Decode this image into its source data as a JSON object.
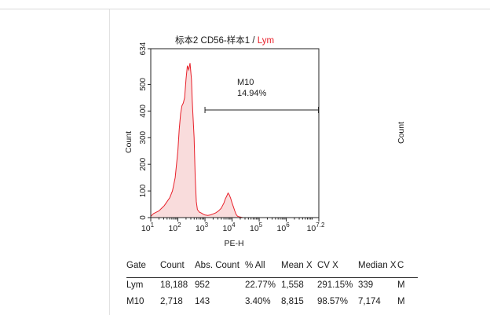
{
  "plot": {
    "title_main": "标本2 CD56-样本1 / ",
    "title_gate": "Lym",
    "ylabel": "Count",
    "xlabel": "PE-H",
    "ymax_label": "634",
    "right_panel_ylabel": "Count",
    "marker": {
      "name": "M10",
      "percent": "14.94%"
    }
  },
  "chart_data": {
    "type": "area",
    "title": "标本2 CD56-样本1 / Lym",
    "xlabel": "PE-H",
    "ylabel": "Count",
    "x_scale": "log",
    "xlim": [
      10,
      15848932
    ],
    "ylim": [
      0,
      634
    ],
    "x_ticks": [
      {
        "base": "10",
        "exp": "1"
      },
      {
        "base": "10",
        "exp": "2"
      },
      {
        "base": "10",
        "exp": "3"
      },
      {
        "base": "10",
        "exp": "4"
      },
      {
        "base": "10",
        "exp": "5"
      },
      {
        "base": "10",
        "exp": "6"
      },
      {
        "base": "10",
        "exp": "7.2"
      }
    ],
    "y_ticks": [
      "0",
      "100",
      "200",
      "300",
      "400",
      "500",
      "634"
    ],
    "series_color": "#e8202a",
    "fill_color": "#f9dcdc",
    "histogram": {
      "log10_x": [
        1.0,
        1.1,
        1.2,
        1.3,
        1.4,
        1.5,
        1.6,
        1.7,
        1.8,
        1.9,
        2.0,
        2.05,
        2.1,
        2.15,
        2.2,
        2.25,
        2.3,
        2.35,
        2.4,
        2.45,
        2.5,
        2.53,
        2.56,
        2.6,
        2.64,
        2.68,
        2.72,
        2.76,
        2.8,
        2.85,
        2.9,
        2.95,
        3.0,
        3.1,
        3.2,
        3.3,
        3.4,
        3.5,
        3.6,
        3.7,
        3.75,
        3.8,
        3.85,
        3.9,
        3.95,
        4.0,
        4.05,
        4.1,
        4.15,
        4.2,
        4.3,
        4.4,
        4.5,
        4.6,
        4.8,
        5.0,
        5.5,
        6.0,
        6.5,
        7.2
      ],
      "counts": [
        5,
        15,
        20,
        25,
        35,
        45,
        60,
        75,
        100,
        150,
        250,
        330,
        390,
        420,
        430,
        450,
        520,
        570,
        555,
        580,
        520,
        440,
        380,
        300,
        150,
        60,
        30,
        25,
        20,
        18,
        15,
        12,
        10,
        8,
        10,
        14,
        18,
        25,
        35,
        55,
        70,
        80,
        92,
        85,
        72,
        55,
        40,
        25,
        12,
        5,
        2,
        0,
        0,
        0,
        0,
        0,
        0,
        0,
        0,
        0
      ]
    },
    "marker": {
      "name": "M10",
      "percent": 14.94,
      "log10_start": 3.0,
      "log10_end": 7.2
    }
  },
  "table": {
    "headers": [
      "Gate",
      "Count",
      "Abs. Count",
      "% All",
      "Mean X",
      "CV X",
      "Median X",
      "C"
    ],
    "rows": [
      [
        "Lym",
        "18,188",
        "952",
        "22.77%",
        "1,558",
        "291.15%",
        "339",
        "M"
      ],
      [
        "M10",
        "2,718",
        "143",
        "3.40%",
        "8,815",
        "98.57%",
        "7,174",
        "M"
      ]
    ]
  }
}
